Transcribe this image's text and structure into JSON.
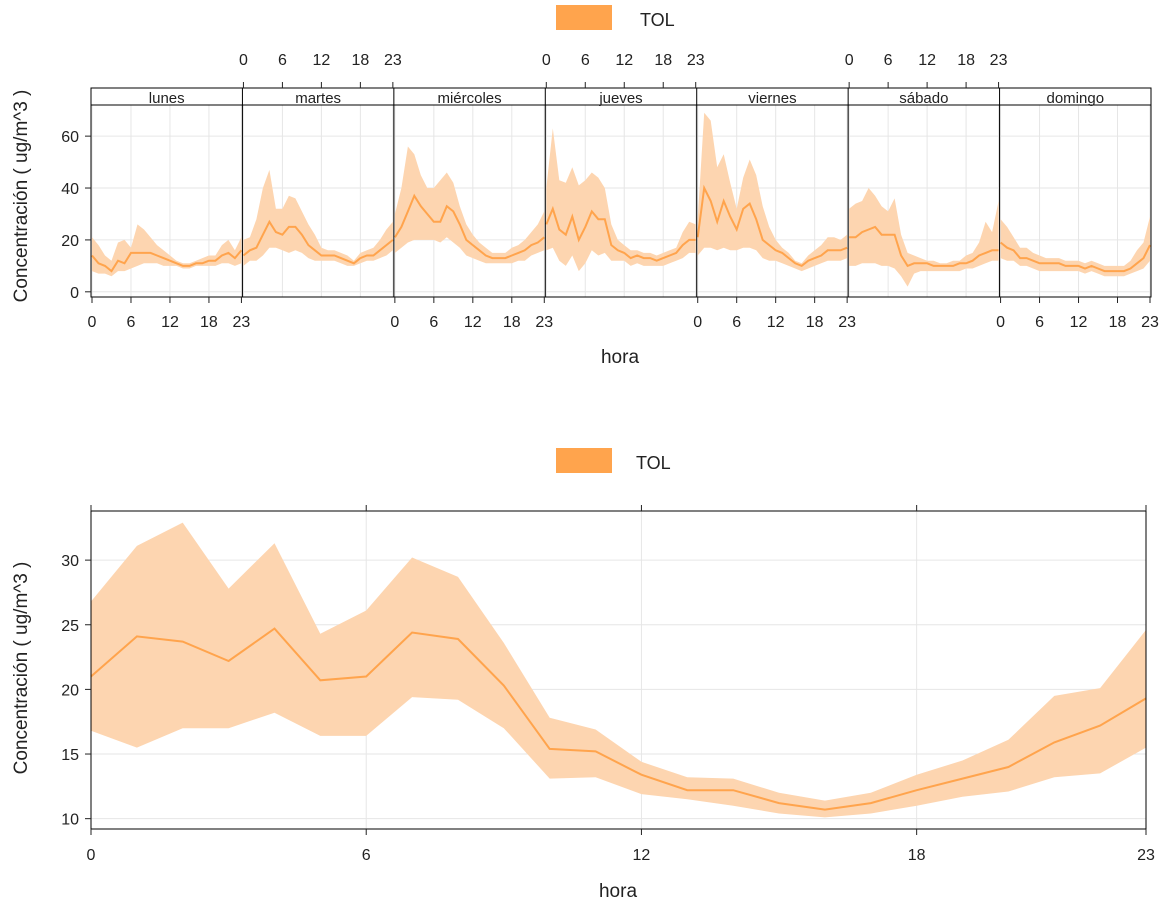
{
  "colors": {
    "line": "#FFA44D",
    "band": "#FDD5B0",
    "axis": "#222222",
    "grid": "#E6E6E6",
    "panel_border": "#000000"
  },
  "chart_data": [
    {
      "type": "line",
      "legend": {
        "name": "TOL",
        "placement": "top-center"
      },
      "xlabel": "hora",
      "ylabel": "Concentración ( ug/m^3 )",
      "ylim": [
        -2,
        72
      ],
      "yticks": [
        0,
        20,
        40,
        60
      ],
      "xticks": [
        0,
        6,
        12,
        18,
        23
      ],
      "grid": true,
      "panels": [
        "lunes",
        "martes",
        "miércoles",
        "jueves",
        "viernes",
        "sábado",
        "domingo"
      ],
      "series": [
        {
          "name": "lunes",
          "mean": [
            14,
            11,
            10,
            8,
            12,
            11,
            15,
            15,
            15,
            15,
            14,
            13,
            12,
            11,
            10,
            10,
            11,
            11,
            12,
            12,
            14,
            15,
            13,
            16
          ],
          "lower": [
            8,
            7,
            7,
            6,
            8,
            8,
            9,
            10,
            11,
            11,
            11,
            10,
            10,
            10,
            9,
            9,
            10,
            10,
            10,
            10,
            11,
            11,
            10,
            11
          ],
          "upper": [
            21,
            18,
            14,
            12,
            19,
            20,
            17,
            26,
            24,
            21,
            18,
            16,
            14,
            12,
            11,
            11,
            12,
            13,
            14,
            14,
            18,
            20,
            16,
            21
          ]
        },
        {
          "name": "martes",
          "mean": [
            14,
            16,
            17,
            22,
            27,
            23,
            22,
            25,
            25,
            22,
            18,
            16,
            14,
            14,
            14,
            13,
            12,
            11,
            13,
            14,
            14,
            16,
            18,
            20
          ],
          "lower": [
            10,
            12,
            12,
            14,
            17,
            17,
            16,
            15,
            16,
            15,
            13,
            12,
            12,
            12,
            12,
            11,
            10,
            10,
            11,
            12,
            12,
            13,
            14,
            16
          ],
          "upper": [
            20,
            21,
            28,
            40,
            47,
            32,
            32,
            37,
            36,
            31,
            26,
            22,
            17,
            16,
            16,
            15,
            14,
            12,
            15,
            16,
            17,
            20,
            24,
            27
          ]
        },
        {
          "name": "miércoles",
          "mean": [
            21,
            25,
            31,
            37,
            33,
            30,
            27,
            27,
            33,
            31,
            26,
            20,
            18,
            16,
            14,
            13,
            13,
            13,
            14,
            15,
            16,
            18,
            19,
            21
          ],
          "lower": [
            15,
            17,
            19,
            20,
            20,
            20,
            20,
            19,
            21,
            19,
            17,
            14,
            13,
            12,
            11,
            11,
            11,
            11,
            11,
            12,
            12,
            14,
            15,
            16
          ],
          "upper": [
            30,
            40,
            56,
            53,
            45,
            40,
            40,
            43,
            46,
            42,
            33,
            26,
            22,
            19,
            17,
            15,
            15,
            15,
            17,
            18,
            20,
            23,
            26,
            31
          ]
        },
        {
          "name": "jueves",
          "mean": [
            26,
            32,
            24,
            22,
            29,
            20,
            25,
            31,
            28,
            28,
            18,
            16,
            15,
            13,
            14,
            13,
            13,
            12,
            13,
            14,
            15,
            18,
            20,
            20
          ],
          "lower": [
            16,
            17,
            12,
            10,
            14,
            8,
            11,
            16,
            14,
            15,
            12,
            12,
            12,
            10,
            11,
            10,
            10,
            10,
            10,
            11,
            12,
            13,
            15,
            15
          ],
          "upper": [
            40,
            63,
            43,
            42,
            48,
            41,
            43,
            46,
            44,
            40,
            26,
            20,
            18,
            16,
            16,
            15,
            15,
            14,
            15,
            16,
            17,
            23,
            27,
            26
          ]
        },
        {
          "name": "viernes",
          "mean": [
            21,
            40,
            35,
            27,
            35,
            29,
            24,
            32,
            34,
            28,
            20,
            18,
            16,
            15,
            13,
            11,
            10,
            12,
            13,
            14,
            16,
            16,
            16,
            17
          ],
          "lower": [
            14,
            17,
            17,
            16,
            17,
            16,
            16,
            17,
            17,
            16,
            13,
            12,
            12,
            11,
            10,
            9,
            8,
            9,
            10,
            11,
            12,
            12,
            12,
            13
          ],
          "upper": [
            28,
            69,
            66,
            48,
            53,
            42,
            32,
            44,
            51,
            45,
            33,
            25,
            20,
            17,
            15,
            12,
            11,
            14,
            16,
            18,
            21,
            21,
            20,
            22
          ]
        },
        {
          "name": "sábado",
          "mean": [
            21,
            21,
            23,
            24,
            25,
            22,
            22,
            22,
            14,
            10,
            11,
            11,
            11,
            10,
            10,
            10,
            10,
            11,
            11,
            12,
            14,
            15,
            16,
            16
          ],
          "lower": [
            10,
            10,
            11,
            11,
            11,
            10,
            10,
            9,
            6,
            2,
            7,
            8,
            8,
            8,
            8,
            8,
            8,
            8,
            9,
            9,
            10,
            11,
            12,
            12
          ],
          "upper": [
            32,
            34,
            35,
            40,
            37,
            33,
            31,
            36,
            22,
            15,
            14,
            13,
            12,
            12,
            11,
            11,
            12,
            12,
            14,
            15,
            19,
            27,
            23,
            35
          ]
        },
        {
          "name": "domingo",
          "mean": [
            19,
            17,
            16,
            13,
            13,
            12,
            11,
            11,
            11,
            11,
            10,
            10,
            10,
            9,
            10,
            9,
            8,
            8,
            8,
            8,
            9,
            11,
            13,
            18
          ],
          "lower": [
            13,
            12,
            12,
            10,
            10,
            9,
            8,
            8,
            8,
            8,
            8,
            8,
            8,
            7,
            8,
            7,
            6,
            6,
            6,
            6,
            7,
            8,
            9,
            12
          ],
          "upper": [
            28,
            25,
            21,
            17,
            17,
            15,
            14,
            13,
            13,
            13,
            12,
            12,
            12,
            11,
            12,
            11,
            10,
            10,
            10,
            10,
            12,
            16,
            19,
            29
          ]
        }
      ]
    },
    {
      "type": "line",
      "legend": {
        "name": "TOL",
        "placement": "top-center"
      },
      "xlabel": "hora",
      "ylabel": "Concentración ( ug/m^3 )",
      "xlim": [
        0,
        23
      ],
      "ylim": [
        9.2,
        33.8
      ],
      "yticks": [
        10,
        15,
        20,
        25,
        30
      ],
      "xticks": [
        0,
        6,
        12,
        18,
        23
      ],
      "grid": true,
      "x": [
        0,
        1,
        2,
        3,
        4,
        5,
        6,
        7,
        8,
        9,
        10,
        11,
        12,
        13,
        14,
        15,
        16,
        17,
        18,
        19,
        20,
        21,
        22,
        23
      ],
      "series": [
        {
          "name": "TOL",
          "mean": [
            21.0,
            24.1,
            23.7,
            22.2,
            24.7,
            20.7,
            21.0,
            24.4,
            23.9,
            20.3,
            15.4,
            15.2,
            13.4,
            12.2,
            12.2,
            11.2,
            10.7,
            11.2,
            12.2,
            13.1,
            14.0,
            15.9,
            17.2,
            19.3
          ],
          "lower": [
            16.8,
            15.5,
            17.0,
            17.0,
            18.2,
            16.4,
            16.4,
            19.4,
            19.2,
            17.0,
            13.1,
            13.2,
            11.9,
            11.5,
            11.0,
            10.4,
            10.1,
            10.4,
            11.0,
            11.7,
            12.1,
            13.2,
            13.5,
            15.5
          ],
          "upper": [
            26.8,
            31.1,
            32.9,
            27.8,
            31.3,
            24.3,
            26.1,
            30.2,
            28.7,
            23.6,
            17.8,
            16.9,
            14.4,
            13.2,
            13.1,
            12.0,
            11.4,
            12.0,
            13.4,
            14.5,
            16.1,
            19.5,
            20.1,
            24.6
          ]
        }
      ]
    }
  ]
}
